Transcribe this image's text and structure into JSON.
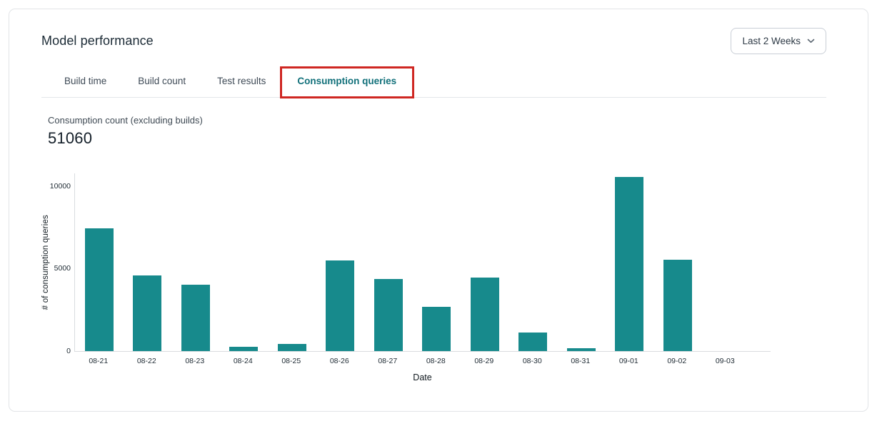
{
  "header": {
    "title": "Model performance",
    "date_range_label": "Last 2 Weeks"
  },
  "tabs": {
    "items": [
      {
        "label": "Build time",
        "active": false
      },
      {
        "label": "Build count",
        "active": false
      },
      {
        "label": "Test results",
        "active": false
      },
      {
        "label": "Consumption queries",
        "active": true,
        "annotated": true
      }
    ]
  },
  "metric": {
    "label": "Consumption count (excluding builds)",
    "value": "51060"
  },
  "chart_data": {
    "type": "bar",
    "categories": [
      "08-21",
      "08-22",
      "08-23",
      "08-24",
      "08-25",
      "08-26",
      "08-27",
      "08-28",
      "08-29",
      "08-30",
      "08-31",
      "09-01",
      "09-02",
      "09-03"
    ],
    "values": [
      7440,
      4580,
      4030,
      280,
      420,
      5500,
      4360,
      2660,
      4460,
      1110,
      170,
      10540,
      5510,
      0
    ],
    "title": "",
    "xlabel": "Date",
    "ylabel": "# of consumption queries",
    "ylim": [
      0,
      10800
    ],
    "yticks": [
      0,
      5000,
      10000
    ],
    "grid": false,
    "legend": false,
    "bar_color": "#178a8c"
  },
  "colors": {
    "bar": "#178a8c",
    "active_tab": "#11707a",
    "annotation_red": "#cf2722",
    "axis_line": "#d9dcdf"
  }
}
